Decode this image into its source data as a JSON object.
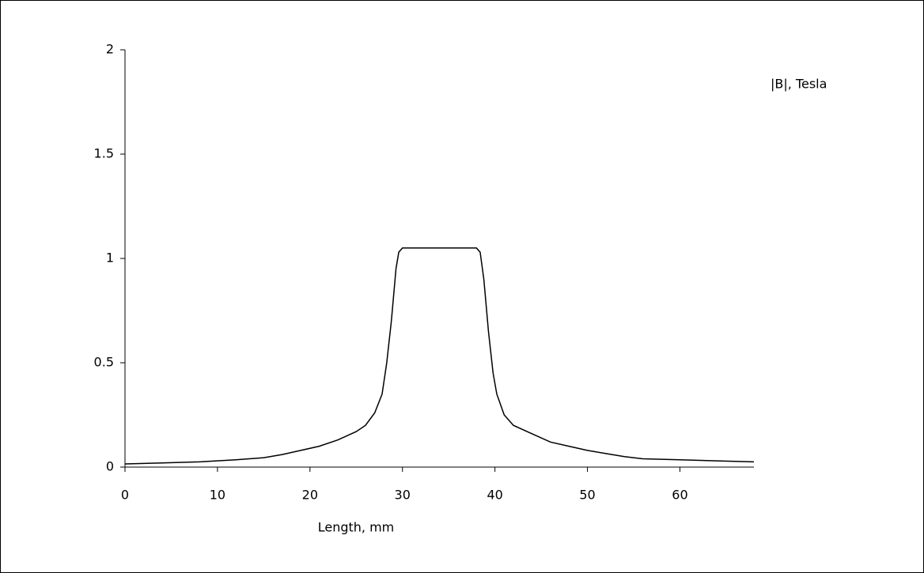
{
  "chart_data": {
    "type": "line",
    "y_label": "|B|, Tesla",
    "x_label": "Length, mm",
    "x": [
      0,
      4,
      8,
      12,
      15,
      17,
      19,
      21,
      23,
      25,
      26,
      27,
      27.8,
      28.3,
      28.8,
      29.3,
      29.6,
      30,
      38,
      38.4,
      38.8,
      39.3,
      39.8,
      40.2,
      41,
      42,
      44,
      46,
      48,
      50,
      52,
      54,
      56,
      60,
      64,
      68
    ],
    "series": [
      {
        "color": "#000000",
        "values": [
          0.015,
          0.02,
          0.025,
          0.035,
          0.045,
          0.06,
          0.08,
          0.1,
          0.13,
          0.17,
          0.2,
          0.26,
          0.35,
          0.5,
          0.7,
          0.95,
          1.03,
          1.05,
          1.05,
          1.03,
          0.9,
          0.65,
          0.45,
          0.35,
          0.25,
          0.2,
          0.16,
          0.12,
          0.1,
          0.08,
          0.065,
          0.05,
          0.04,
          0.035,
          0.03,
          0.025
        ]
      }
    ],
    "xlim": [
      0,
      68
    ],
    "xticks": [
      0,
      10,
      20,
      30,
      40,
      50,
      60
    ],
    "ylim": [
      0,
      2
    ],
    "yticks": [
      0,
      0.5,
      1,
      1.5,
      2
    ]
  }
}
